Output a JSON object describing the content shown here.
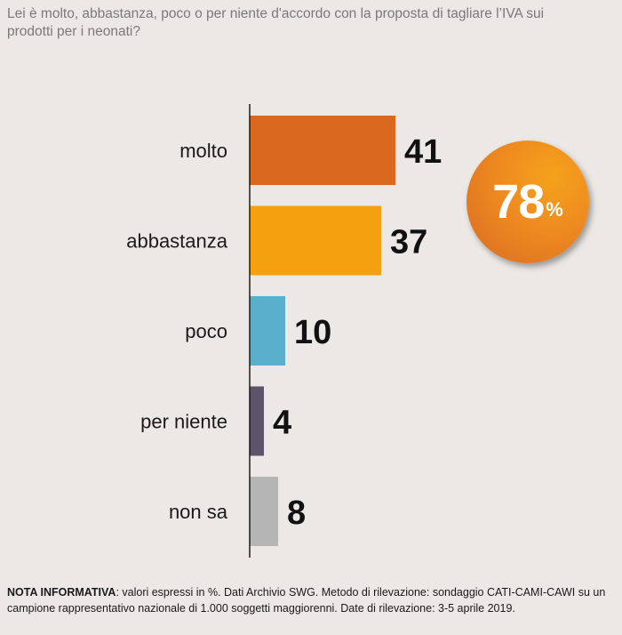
{
  "question": "Lei è molto, abbastanza, poco o per niente d'accordo con la proposta di tagliare l’IVA sui prodotti per i neonati?",
  "chart_data": {
    "type": "bar",
    "orientation": "horizontal",
    "categories": [
      "molto",
      "abbastanza",
      "poco",
      "per niente",
      "non sa"
    ],
    "values": [
      41,
      37,
      10,
      4,
      8
    ],
    "colors": [
      "#d9691f",
      "#f5a00f",
      "#5ab0cc",
      "#5c5569",
      "#b5b5b5"
    ],
    "xlim": [
      0,
      41
    ],
    "grid": false,
    "legend": "none"
  },
  "badge": {
    "value": "78",
    "unit": "%",
    "color": "#ee8a20"
  },
  "note": {
    "label": "NOTA INFORMATIVA",
    "text": ": valori espressi in %. Dati Archivio SWG. Metodo di rilevazione: sondaggio CATI-CAMI-CAWI su un campione rappresentativo nazionale di 1.000 soggetti maggiorenni. Date di rilevazione: 3-5 aprile 2019."
  }
}
